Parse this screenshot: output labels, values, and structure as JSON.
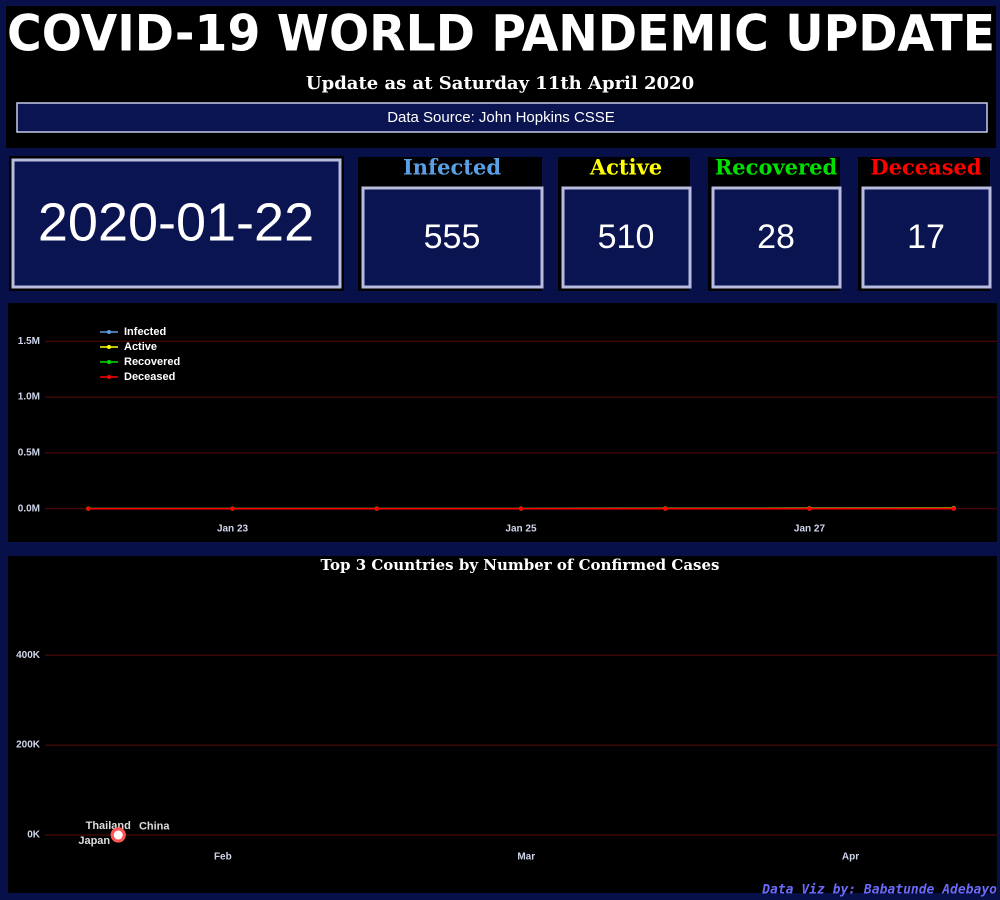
{
  "header": {
    "title": "COVID-19 WORLD PANDEMIC UPDATE",
    "update": "Update as at Saturday 11th April 2020",
    "source": "Data Source: John Hopkins CSSE"
  },
  "kpis": {
    "date": "2020-01-22",
    "items": [
      {
        "label": "Infected",
        "value": 555,
        "color": "#5aa0e6"
      },
      {
        "label": "Active",
        "value": 510,
        "color": "#ffff00"
      },
      {
        "label": "Recovered",
        "value": 28,
        "color": "#00e000"
      },
      {
        "label": "Deceased",
        "value": 17,
        "color": "#ff0000"
      }
    ]
  },
  "chart_data": [
    {
      "type": "line",
      "x": [
        "Jan 22",
        "Jan 23",
        "Jan 24",
        "Jan 25",
        "Jan 26",
        "Jan 27",
        "Jan 28"
      ],
      "xticks": [
        "Jan 23",
        "Jan 25",
        "Jan 27"
      ],
      "series": [
        {
          "name": "Infected",
          "color": "#5aa0e6",
          "values": [
            555,
            654,
            941,
            1434,
            2118,
            2927,
            4593
          ]
        },
        {
          "name": "Active",
          "color": "#ffff00",
          "values": [
            510,
            606,
            879,
            1353,
            2010,
            2784,
            4355
          ]
        },
        {
          "name": "Recovered",
          "color": "#00e000",
          "values": [
            28,
            30,
            36,
            39,
            52,
            61,
            107
          ]
        },
        {
          "name": "Deceased",
          "color": "#ff0000",
          "values": [
            17,
            18,
            26,
            42,
            56,
            82,
            131
          ]
        }
      ],
      "ylim": [
        -280000,
        1780000
      ],
      "yticks": [
        {
          "value": 0,
          "label": "0.0M"
        },
        {
          "value": 500000,
          "label": "0.5M"
        },
        {
          "value": 1000000,
          "label": "1.0M"
        },
        {
          "value": 1500000,
          "label": "1.5M"
        }
      ],
      "grid": true,
      "legend": "top-left"
    },
    {
      "type": "point-label",
      "title": "Top 3 Countries by Number of Confirmed Cases",
      "x": [
        22
      ],
      "xlim": [
        15,
        106
      ],
      "xticks": [
        {
          "value": 32,
          "label": "Feb"
        },
        {
          "value": 61,
          "label": "Mar"
        },
        {
          "value": 92,
          "label": "Apr"
        }
      ],
      "series": [
        {
          "name": "Thailand",
          "color": "#ff5555",
          "values": [
            2
          ]
        },
        {
          "name": "China",
          "color": "#ff5555",
          "values": [
            548
          ]
        },
        {
          "name": "Japan",
          "color": "#ff5555",
          "values": [
            2
          ]
        }
      ],
      "ylim": [
        -100000,
        567000
      ],
      "yticks": [
        {
          "value": 0,
          "label": "0K"
        },
        {
          "value": 200000,
          "label": "200K"
        },
        {
          "value": 400000,
          "label": "400K"
        }
      ],
      "grid": true
    }
  ],
  "footer": {
    "credit": "Data Viz by: Babatunde Adebayo"
  }
}
